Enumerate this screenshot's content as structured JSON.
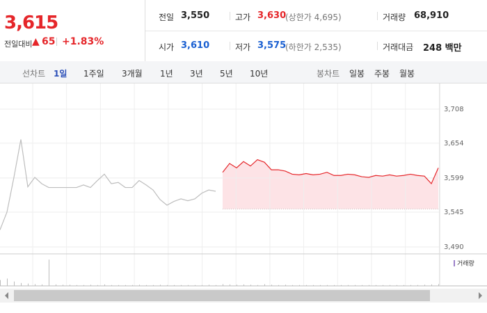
{
  "header": {
    "price": "3,615",
    "change_label": "전일대비",
    "change": "65",
    "change_pct": "+1.83%"
  },
  "stats": [
    {
      "label": "전일",
      "value": "3,550",
      "color": "#222222"
    },
    {
      "label": "고가",
      "value": "3,630",
      "color": "#e5262a",
      "note": "(상한가 4,695)"
    },
    {
      "label": "거래량",
      "value": "68,910",
      "color": "#222222"
    },
    {
      "label": "시가",
      "value": "3,610",
      "color": "#1a5fd1"
    },
    {
      "label": "저가",
      "value": "3,575",
      "color": "#1a5fd1",
      "note": "(하한가 2,535)"
    },
    {
      "label": "거래대금",
      "value": "248 백만",
      "color": "#222222"
    }
  ],
  "tabs": {
    "line_label": "선차트",
    "line": [
      "1일",
      "1주일",
      "3개월",
      "1년",
      "3년",
      "5년",
      "10년"
    ],
    "candle_label": "봉차트",
    "candle": [
      "일봉",
      "주봉",
      "월봉"
    ]
  },
  "chart_data": {
    "type": "line",
    "series": [
      {
        "color": "#bdbdbd",
        "values": [
          3517,
          3545,
          3600,
          3660,
          3585,
          3600,
          3590,
          3584,
          3584,
          3584,
          3584,
          3584,
          3588,
          3584,
          3595,
          3605,
          3590,
          3592,
          3584,
          3584,
          3595,
          3588,
          3580,
          3565,
          3556,
          3562,
          3566,
          3563,
          3566,
          3575,
          3580,
          3578,
          null,
          null,
          null,
          null,
          null,
          null,
          null,
          null,
          null,
          null,
          null,
          null,
          null,
          null,
          null,
          null,
          null,
          null,
          null,
          null,
          null,
          null,
          null,
          null,
          null,
          null,
          null,
          null,
          null,
          null,
          null,
          null
        ]
      },
      {
        "color": "#e5262a",
        "values": [
          null,
          null,
          null,
          null,
          null,
          null,
          null,
          null,
          null,
          null,
          null,
          null,
          null,
          null,
          null,
          null,
          null,
          null,
          null,
          null,
          null,
          null,
          null,
          null,
          null,
          null,
          null,
          null,
          null,
          null,
          null,
          null,
          3608,
          3622,
          3615,
          3625,
          3618,
          3628,
          3624,
          3612,
          3612,
          3610,
          3605,
          3604,
          3606,
          3604,
          3605,
          3608,
          3603,
          3603,
          3605,
          3604,
          3601,
          3600,
          3603,
          3602,
          3604,
          3602,
          3603,
          3605,
          3603,
          3602,
          3590,
          3615
        ]
      }
    ],
    "fill": "#fde3e6",
    "baseline": 3550,
    "ylim": [
      3479,
      3743
    ],
    "yticks": [
      {
        "value": 3490,
        "label": "3,490"
      },
      {
        "value": 3545,
        "label": "3,545"
      },
      {
        "value": 3599,
        "label": "3,599"
      },
      {
        "value": 3654,
        "label": "3,654"
      },
      {
        "value": 3708,
        "label": "3,708"
      }
    ],
    "volume": {
      "name": "거래량",
      "color": "#9b7fc9",
      "ylim": [
        0,
        100
      ],
      "values": [
        20,
        25,
        15,
        10,
        8,
        6,
        5,
        90,
        5,
        4,
        4,
        3,
        3,
        4,
        3,
        5,
        3,
        3,
        3,
        3,
        4,
        3,
        3,
        4,
        3,
        3,
        3,
        3,
        3,
        3,
        4,
        3,
        6,
        5,
        4,
        5,
        4,
        3,
        6,
        4,
        3,
        4,
        3,
        3,
        3,
        3,
        3,
        3,
        3,
        3,
        3,
        3,
        3,
        3,
        3,
        3,
        3,
        3,
        3,
        3,
        3,
        4,
        5,
        6
      ]
    }
  }
}
